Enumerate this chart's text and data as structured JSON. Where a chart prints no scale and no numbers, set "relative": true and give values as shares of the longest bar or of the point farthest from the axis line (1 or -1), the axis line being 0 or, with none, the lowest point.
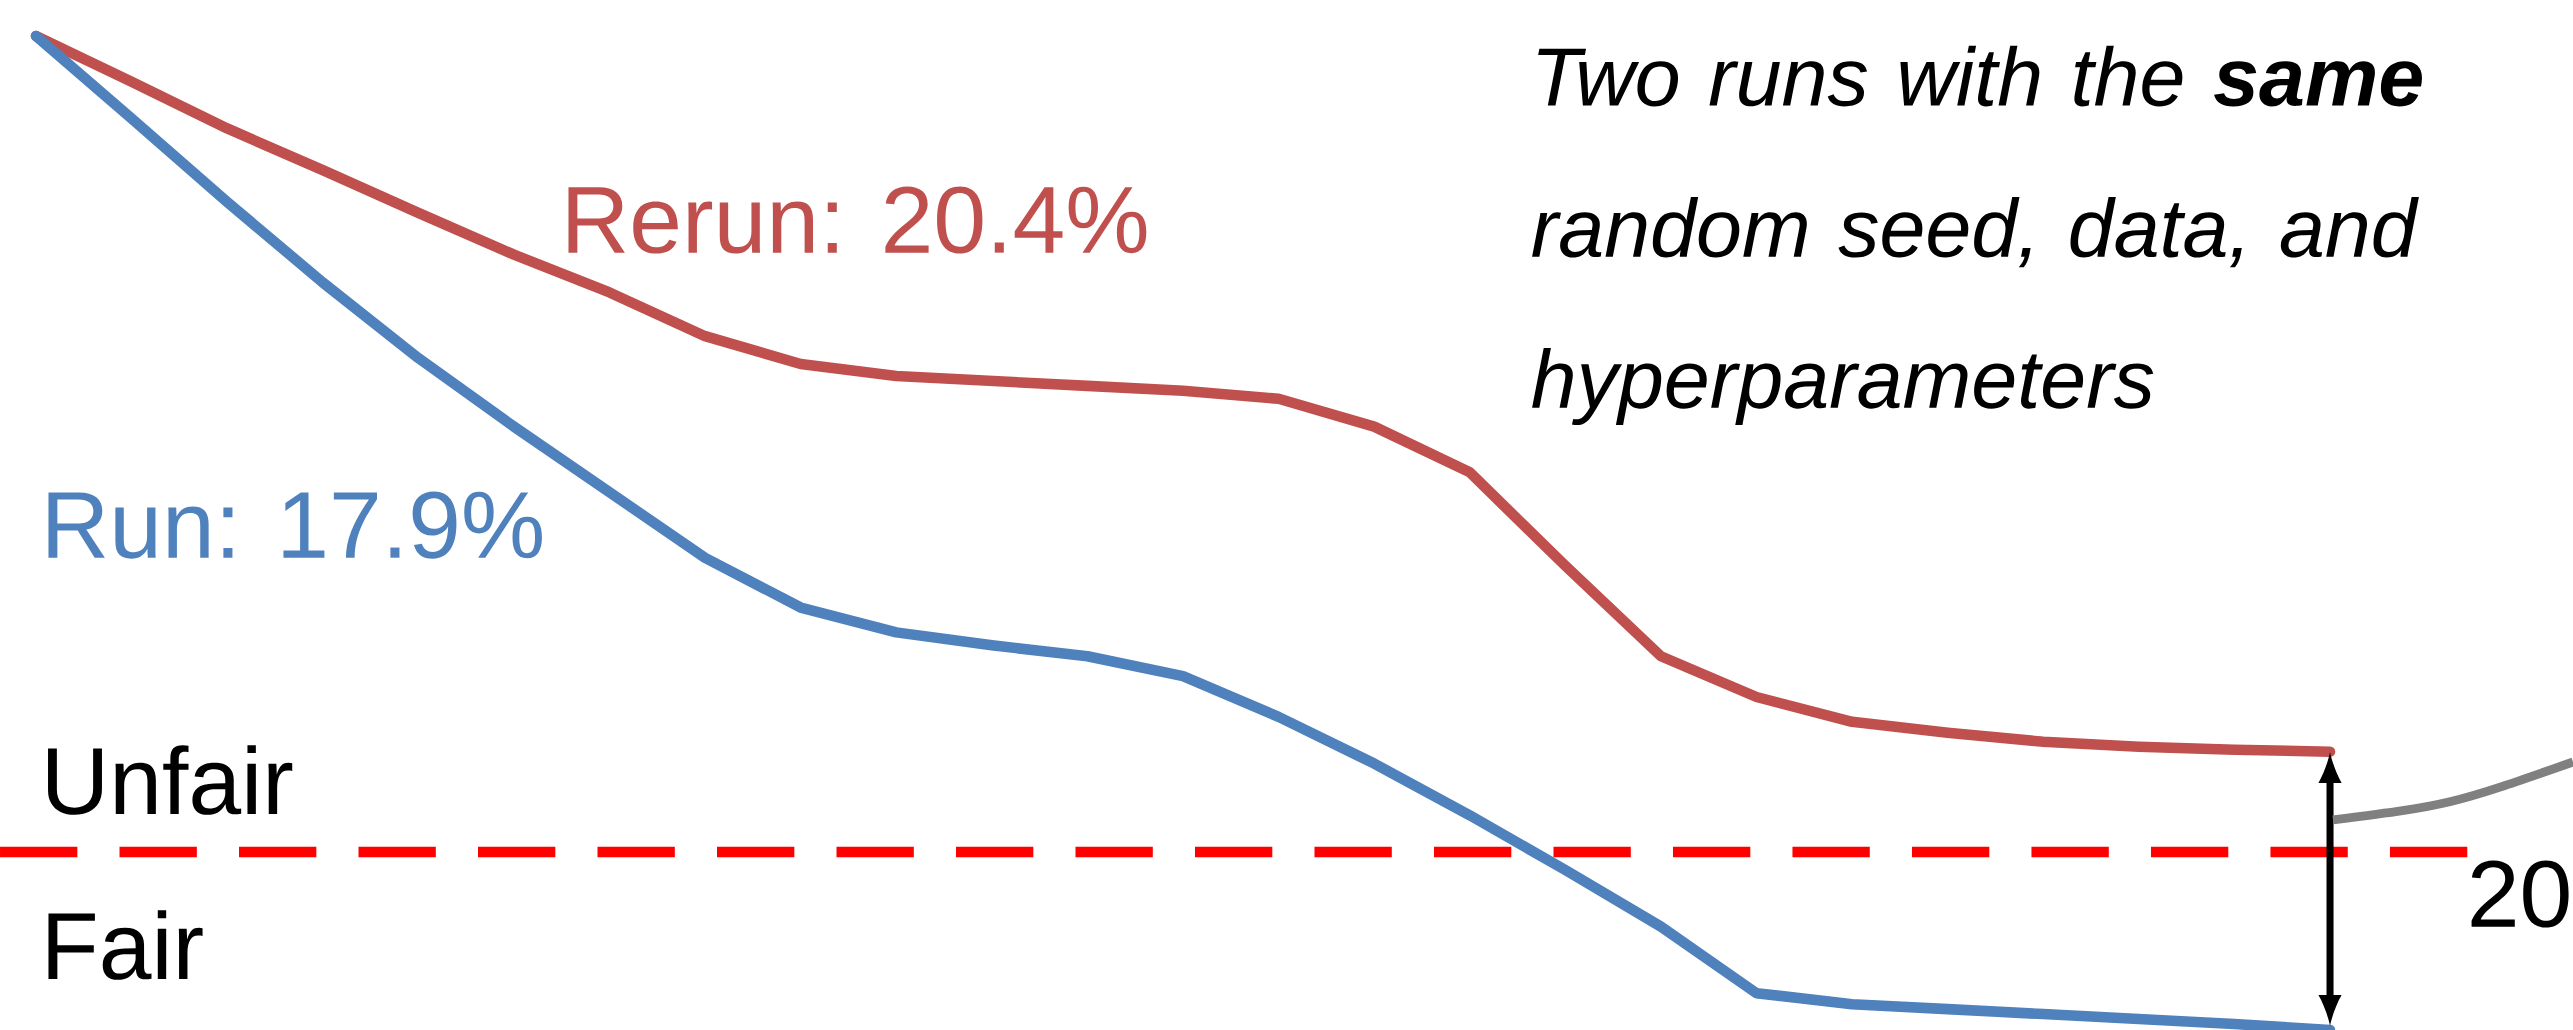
{
  "chart_data": {
    "type": "line",
    "relative": true,
    "categories": [
      null,
      null,
      null,
      null,
      null,
      null,
      null,
      null,
      null,
      null,
      null,
      null,
      null,
      null,
      null,
      null,
      null,
      null,
      null,
      null,
      null,
      null,
      null,
      null,
      null
    ],
    "series": [
      {
        "name": "Rerun: 20.4%",
        "color": "#c0504d",
        "values": [
          1.0,
          0.954,
          0.907,
          0.865,
          0.822,
          0.78,
          0.742,
          0.698,
          0.67,
          0.658,
          0.653,
          0.648,
          0.643,
          0.635,
          0.607,
          0.561,
          0.467,
          0.376,
          0.335,
          0.31,
          0.299,
          0.29,
          0.285,
          0.282,
          0.28
        ]
      },
      {
        "name": "Run: 17.9%",
        "color": "#4f81bd",
        "values": [
          1.0,
          0.917,
          0.833,
          0.752,
          0.676,
          0.607,
          0.541,
          0.475,
          0.425,
          0.4,
          0.387,
          0.376,
          0.356,
          0.315,
          0.268,
          0.216,
          0.161,
          0.104,
          0.037,
          0.026,
          0.021,
          0.016,
          0.011,
          0.006,
          0.0
        ]
      }
    ],
    "ref_lines": [
      {
        "axis": "y",
        "value": 0.179,
        "color": "#ff0000",
        "line_style": "dashed"
      }
    ],
    "annotations": [
      "Two runs with the **same** random seed, data, and hyperparameters",
      "Unfair",
      "Fair",
      "20"
    ]
  }
}
